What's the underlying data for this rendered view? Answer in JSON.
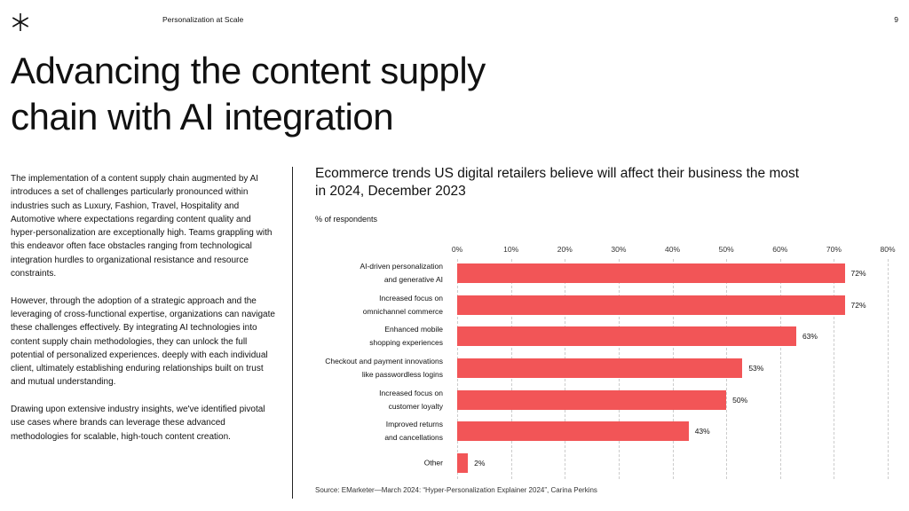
{
  "header": {
    "section": "Personalization at Scale",
    "page": "9"
  },
  "title": "Advancing the content supply\nchain with AI integration",
  "body": {
    "paragraphs": [
      "The implementation of a content supply chain augmented by AI introduces a set of challenges particularly pronounced within industries such as Luxury, Fashion, Travel, Hospitality and Automotive where expectations regarding content quality and hyper-personalization are exceptionally high. Teams grappling with this endeavor often face obstacles ranging from technological integration hurdles to organizational resistance and resource constraints.",
      "However, through the adoption of a strategic approach and the leveraging of cross-functional expertise, organizations can navigate these challenges effectively. By integrating AI technologies into content supply chain methodologies, they can unlock the full potential of personalized experiences. deeply with each individual client, ultimately establishing enduring relationships built on trust and mutual understanding.",
      "Drawing upon extensive industry insights, we've identified pivotal use cases where brands can leverage these advanced methodologies for scalable, high-touch content creation."
    ]
  },
  "chart_data": {
    "type": "bar",
    "orientation": "horizontal",
    "title": "Ecommerce trends US digital retailers believe will affect their business the most\nin 2024, December 2023",
    "subtitle": "% of respondents",
    "categories": [
      "AI-driven personalization\nand generative AI",
      "Increased focus on\nomnichannel commerce",
      "Enhanced mobile\nshopping experiences",
      "Checkout and payment innovations\nlike passwordless logins",
      "Increased focus on\ncustomer loyalty",
      "Improved returns\nand cancellations",
      "Other"
    ],
    "values": [
      72,
      72,
      63,
      53,
      50,
      43,
      2
    ],
    "value_labels": [
      "72%",
      "72%",
      "63%",
      "53%",
      "50%",
      "43%",
      "2%"
    ],
    "color": "#f25557",
    "xlim": [
      0,
      80
    ],
    "xticks": [
      {
        "value": 0,
        "label": "0%"
      },
      {
        "value": 10,
        "label": "10%"
      },
      {
        "value": 20,
        "label": "20%"
      },
      {
        "value": 30,
        "label": "30%"
      },
      {
        "value": 40,
        "label": "40%"
      },
      {
        "value": 50,
        "label": "50%"
      },
      {
        "value": 60,
        "label": "60%"
      },
      {
        "value": 70,
        "label": "70%"
      },
      {
        "value": 80,
        "label": "80%"
      }
    ],
    "grid": true,
    "source": "Source: EMarketer—March 2024: “Hyper-Personalization Explainer 2024”, Carina Perkins"
  }
}
